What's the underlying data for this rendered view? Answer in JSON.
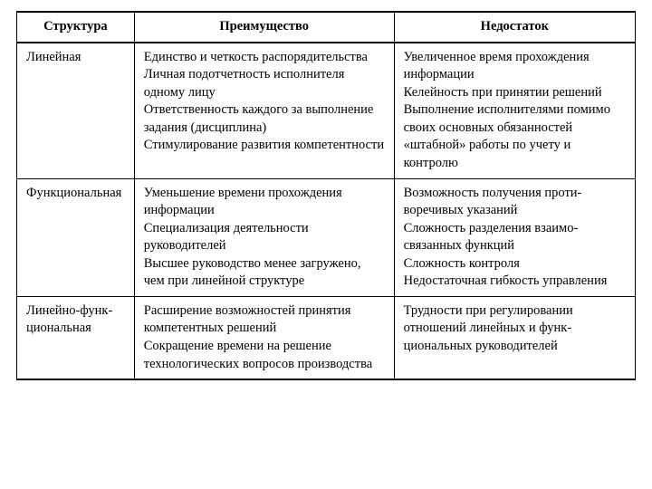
{
  "table": {
    "columns": [
      "Структура",
      "Преимущество",
      "Недостаток"
    ],
    "column_widths_pct": [
      19,
      42,
      39
    ],
    "header_fontweight": "bold",
    "header_align": "center",
    "font_family": "Times New Roman",
    "font_size_pt": 11,
    "border_color": "#000000",
    "background_color": "#ffffff",
    "rows": [
      {
        "structure": "Линейная",
        "advantage": "Единство и четкость распоряди­тельства\nЛичная подотчетность исполни­теля одному лицу\nОтветственность каждого за вы­полнение задания (дисциплина)\nСтимулирование развития компетентности",
        "disadvantage": "Увеличенное время прохожде­ния информации\nКелейность при принятии решений\nВыполнение исполнителями помимо своих основных обя­занностей «штабной» работы по учету и контролю"
      },
      {
        "structure": "Функциональ­ная",
        "advantage": "Уменьшение времени прохожде­ния информации\nСпециализация деятельности руководителей\nВысшее руководство менее загружено, чем при линейной структуре",
        "disadvantage": "Возможность получения проти­воречивых указаний\nСложность разделения взаимо­связанных функций\nСложность контроля\nНедостаточная гибкость управления"
      },
      {
        "structure": "Линейно-функ­циональная",
        "advantage": "Расширение возможностей при­нятия компетентных решений\nСокращение времени на решение технологических вопросов производства",
        "disadvantage": "Трудности при регулировании отношений линейных и функ­циональных руководителей"
      }
    ]
  }
}
